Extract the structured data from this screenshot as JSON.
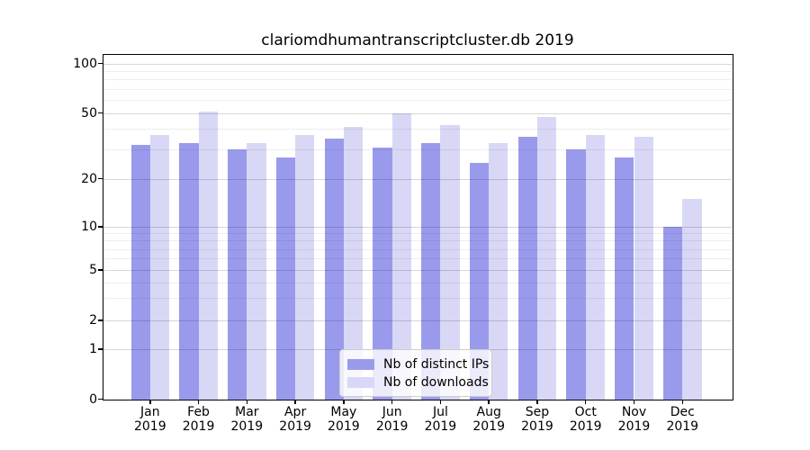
{
  "title": "clariomdhumantranscriptcluster.db 2019",
  "chart_data": {
    "type": "bar",
    "title": "clariomdhumantranscriptcluster.db 2019",
    "categories": [
      "Jan",
      "Feb",
      "Mar",
      "Apr",
      "May",
      "Jun",
      "Jul",
      "Aug",
      "Sep",
      "Oct",
      "Nov",
      "Dec"
    ],
    "year": "2019",
    "series": [
      {
        "name": "Nb of distinct IPs",
        "color": "#9a9aec",
        "values": [
          32,
          33,
          30,
          27,
          35,
          31,
          33,
          25,
          36,
          30,
          27,
          10
        ]
      },
      {
        "name": "Nb of downloads",
        "color": "#d8d8f6",
        "values": [
          37,
          51,
          33,
          37,
          41,
          50,
          42,
          33,
          47,
          37,
          36,
          15
        ]
      }
    ],
    "xlabel": "",
    "ylabel": "",
    "yscale": "symlog",
    "ylim": [
      0,
      112
    ],
    "y_ticks": [
      100,
      50,
      20,
      10,
      5,
      2,
      1,
      0
    ],
    "y_minor_gridlines": [
      90,
      80,
      70,
      60,
      40,
      30,
      9,
      8,
      7,
      6,
      4,
      3
    ],
    "grid": true,
    "legend_position": "lower center"
  }
}
